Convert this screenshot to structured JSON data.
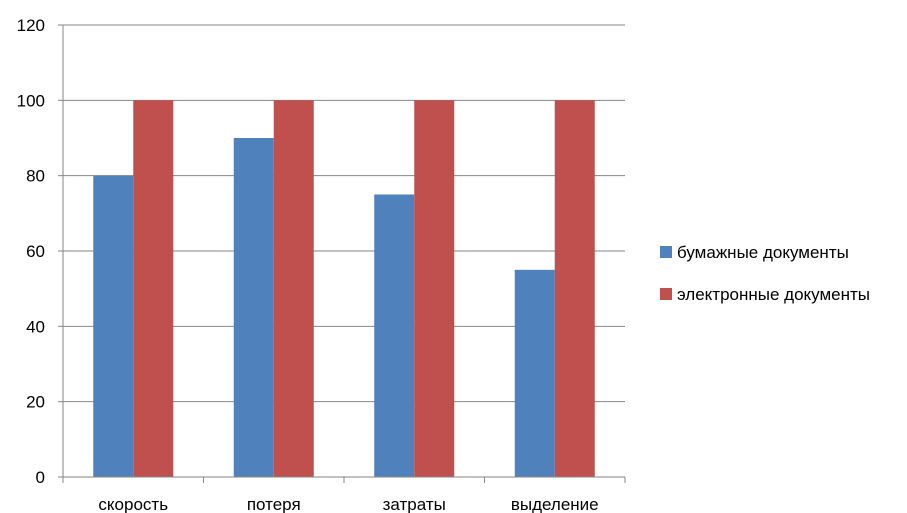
{
  "chart_data": {
    "type": "bar",
    "categories": [
      "скорость",
      "потеря",
      "затраты",
      "выделение"
    ],
    "series": [
      {
        "name": "бумажные документы",
        "values": [
          80,
          90,
          75,
          55
        ],
        "color": "#4F81BD"
      },
      {
        "name": "электронные документы",
        "values": [
          100,
          100,
          100,
          100
        ],
        "color": "#C0504D"
      }
    ],
    "title": "",
    "xlabel": "",
    "ylabel": "",
    "ylim": [
      0,
      120
    ],
    "yticks": [
      0,
      20,
      40,
      60,
      80,
      100,
      120
    ],
    "grid": true,
    "legend_position": "right"
  },
  "colors": {
    "gridline": "#868686",
    "axis": "#868686"
  }
}
